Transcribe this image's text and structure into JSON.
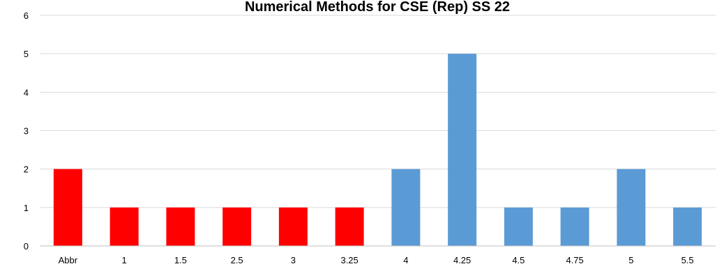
{
  "chart_data": {
    "type": "bar",
    "title": "Numerical Methods for CSE (Rep) SS 22",
    "xlabel": "",
    "ylabel": "",
    "categories": [
      "Abbr",
      "1",
      "1.5",
      "2.5",
      "3",
      "3.25",
      "4",
      "4.25",
      "4.5",
      "4.75",
      "5",
      "5.5"
    ],
    "values": [
      2,
      1,
      1,
      1,
      1,
      1,
      2,
      5,
      1,
      1,
      2,
      1
    ],
    "colors": [
      "#ff0000",
      "#ff0000",
      "#ff0000",
      "#ff0000",
      "#ff0000",
      "#ff0000",
      "#5b9bd5",
      "#5b9bd5",
      "#5b9bd5",
      "#5b9bd5",
      "#5b9bd5",
      "#5b9bd5"
    ],
    "ylim": [
      0,
      6
    ],
    "yticks": [
      0,
      1,
      2,
      3,
      4,
      5,
      6
    ],
    "grid": true,
    "legend": "none"
  }
}
